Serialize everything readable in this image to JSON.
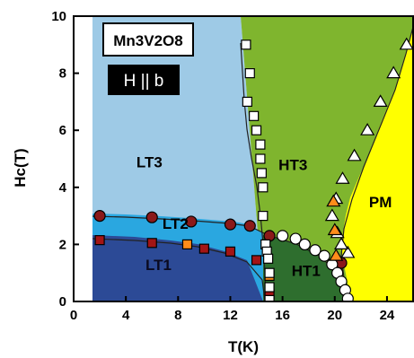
{
  "chart_data": {
    "type": "scatter",
    "title": "Mn3V2O8",
    "annotation": "H || b",
    "xlabel": "T(K)",
    "ylabel": "Hc(T)",
    "xlim": [
      0,
      26
    ],
    "ylim": [
      0,
      10
    ],
    "xticks": [
      "0",
      "4",
      "8",
      "12",
      "16",
      "20",
      "24"
    ],
    "yticks": [
      "0",
      "2",
      "4",
      "6",
      "8",
      "10"
    ],
    "grid": false,
    "regions": [
      {
        "label": "LT3",
        "color": "#9ecae6"
      },
      {
        "label": "LT2",
        "color": "#2aa7e0"
      },
      {
        "label": "LT1",
        "color": "#2c4a96"
      },
      {
        "label": "HT3",
        "color": "#7fb52e"
      },
      {
        "label": "HT1",
        "color": "#2e6e2e"
      },
      {
        "label": "PM",
        "color": "#ffff00"
      }
    ],
    "series": [
      {
        "marker": "circle",
        "color": "#8b1a1a",
        "x": [
          2,
          6,
          9,
          12,
          13.5,
          15,
          20.5
        ],
        "y": [
          3.0,
          2.95,
          2.8,
          2.7,
          2.65,
          2.3,
          1.35
        ]
      },
      {
        "marker": "square",
        "color": "#a31515",
        "x": [
          2,
          6,
          10,
          12,
          14,
          15
        ],
        "y": [
          2.15,
          2.05,
          1.85,
          1.75,
          1.45,
          0.25
        ]
      },
      {
        "marker": "square",
        "color": "#ff8c1a",
        "x": [
          8.7,
          15
        ],
        "y": [
          2.0,
          0.9
        ]
      },
      {
        "marker": "square",
        "color": "#ffffff",
        "x": [
          13.2,
          13.5,
          13.3,
          13.8,
          14.0,
          14.3,
          14.3,
          14.4,
          14.5,
          14.5,
          14.7,
          14.8,
          14.9,
          15.0,
          15.0,
          15.0
        ],
        "y": [
          9.0,
          8.0,
          7.0,
          6.5,
          6.0,
          5.5,
          5.0,
          4.5,
          4.0,
          3.0,
          2.0,
          1.75,
          1.5,
          1.0,
          0.5,
          0.05
        ]
      },
      {
        "marker": "circle",
        "color": "#ffffff",
        "x": [
          16.0,
          17.0,
          17.7,
          18.5,
          19.2,
          19.8,
          20.2,
          20.5,
          20.8,
          21.0
        ],
        "y": [
          2.3,
          2.2,
          2.0,
          1.8,
          1.6,
          1.3,
          1.0,
          0.7,
          0.4,
          0.1
        ]
      },
      {
        "marker": "triangle",
        "color": "#ffffff",
        "x": [
          21.0,
          20.5,
          20.2,
          19.8,
          20.1,
          20.6,
          21.5,
          22.5,
          23.5,
          24.5,
          25.5
        ],
        "y": [
          1.7,
          2.0,
          2.4,
          3.0,
          3.6,
          4.3,
          5.1,
          6.0,
          7.0,
          8.0,
          9.0
        ]
      },
      {
        "marker": "triangle",
        "color": "#ff8c1a",
        "x": [
          19.9,
          20.0,
          20.1
        ],
        "y": [
          3.5,
          2.5,
          1.6
        ]
      }
    ]
  }
}
